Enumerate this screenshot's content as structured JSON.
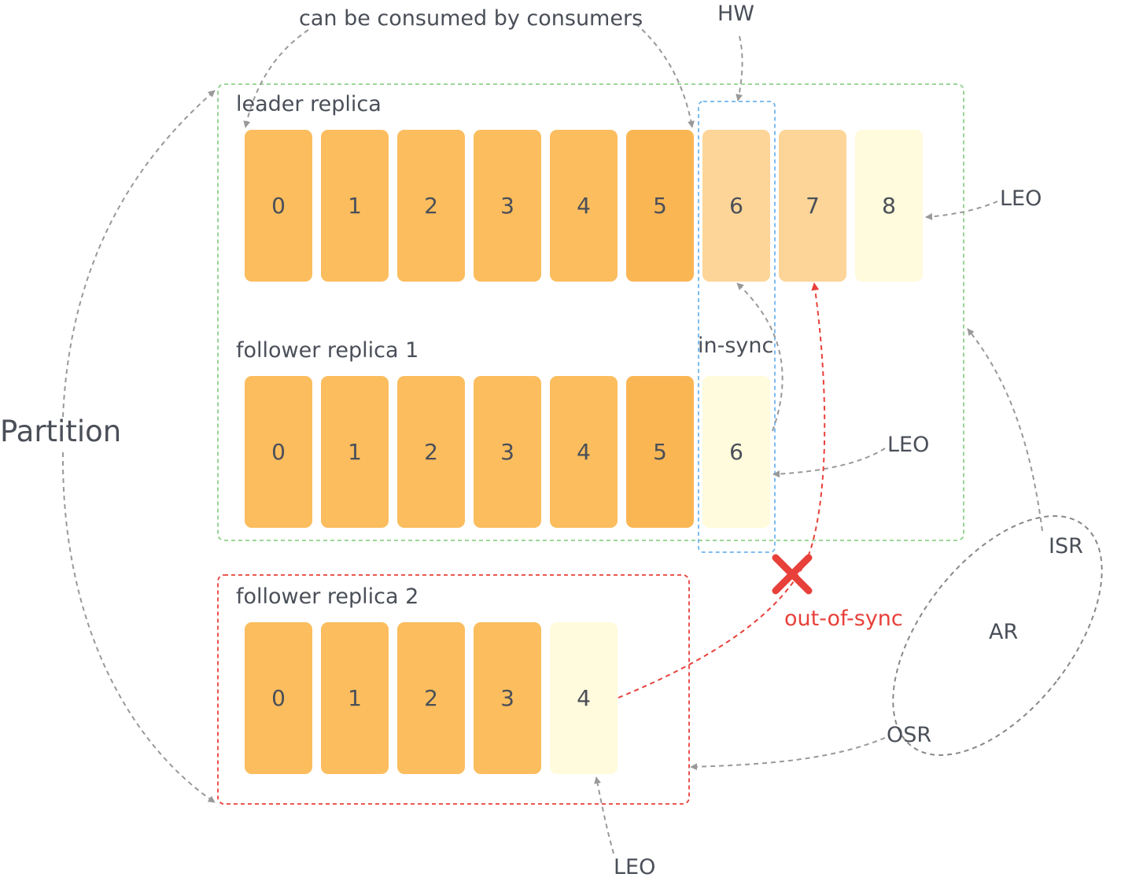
{
  "labels": {
    "consumed": "can be consumed by consumers",
    "hw": "HW",
    "leader": "leader replica",
    "follower1": "follower replica 1",
    "follower2": "follower replica 2",
    "partition": "Partition",
    "in_sync": "in-sync",
    "out_of_sync": "out-of-sync",
    "leo_leader": "LEO",
    "leo_follower1": "LEO",
    "leo_follower2": "LEO",
    "isr": "ISR",
    "ar": "AR",
    "osr": "OSR"
  },
  "replicas": {
    "leader": [
      "0",
      "1",
      "2",
      "3",
      "4",
      "5",
      "6",
      "7",
      "8"
    ],
    "follower1": [
      "0",
      "1",
      "2",
      "3",
      "4",
      "5",
      "6"
    ],
    "follower2": [
      "0",
      "1",
      "2",
      "3",
      "4"
    ]
  },
  "colors": {
    "committed": "#fbbd5e",
    "uncommitted": "#fdd598",
    "leo": "#fffbdc",
    "isr_border": "#8ed08a",
    "osr_border": "#e8403a",
    "hw_border": "#6fb4ee",
    "arrow": "#999999",
    "out_of_sync": "#e8403a"
  }
}
